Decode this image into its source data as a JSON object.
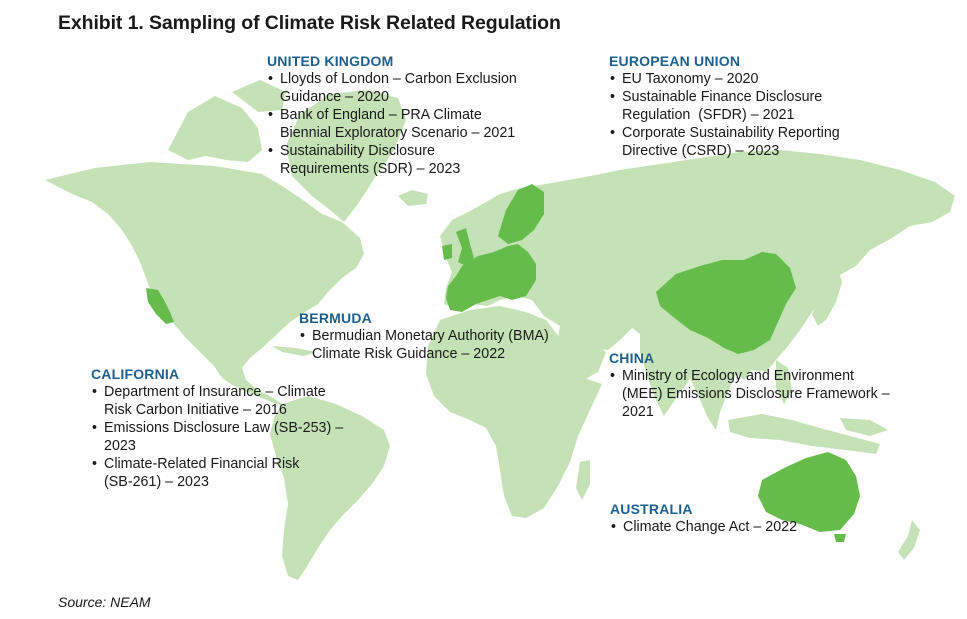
{
  "title": "Exhibit 1. Sampling of Climate Risk Related Regulation",
  "source": "Source: NEAM",
  "colors": {
    "land": "#c4e2b6",
    "highlight": "#65bc4b",
    "heading": "#1f5f8b",
    "text": "#1a1a1a"
  },
  "highlighted_regions": [
    "California",
    "United Kingdom",
    "European Union",
    "China",
    "Australia"
  ],
  "regions": {
    "uk": {
      "heading": "UNITED KINGDOM",
      "items": [
        {
          "l1": "Lloyds of London – Carbon Exclusion",
          "l2": "Guidance – 2020"
        },
        {
          "l1": "Bank of England – PRA Climate",
          "l2": "Biennial Exploratory Scenario – 2021"
        },
        {
          "l1": "Sustainability Disclosure",
          "l2": "Requirements (SDR) – 2023"
        }
      ]
    },
    "eu": {
      "heading": "EUROPEAN UNION",
      "items": [
        {
          "l1": "EU Taxonomy – 2020"
        },
        {
          "l1": "Sustainable Finance Disclosure",
          "l2": "Regulation  (SFDR) – 2021"
        },
        {
          "l1": "Corporate Sustainability Reporting",
          "l2": "Directive (CSRD) – 2023"
        }
      ]
    },
    "bermuda": {
      "heading": "BERMUDA",
      "items": [
        {
          "l1": "Bermudian Monetary Authority (BMA)",
          "l2": "Climate Risk Guidance – 2022"
        }
      ]
    },
    "california": {
      "heading": "CALIFORNIA",
      "items": [
        {
          "l1": "Department of Insurance – Climate",
          "l2": "Risk Carbon Initiative – 2016"
        },
        {
          "l1": "Emissions Disclosure Law (SB-253) –",
          "l2": "2023"
        },
        {
          "l1": "Climate-Related Financial Risk",
          "l2": "(SB-261) – 2023"
        }
      ]
    },
    "china": {
      "heading": "CHINA",
      "items": [
        {
          "l1": "Ministry of Ecology and Environment",
          "l2": "(MEE) Emissions Disclosure Framework –",
          "l3": "2021"
        }
      ]
    },
    "australia": {
      "heading": "AUSTRALIA",
      "items": [
        {
          "l1": "Climate Change Act – 2022"
        }
      ]
    }
  }
}
